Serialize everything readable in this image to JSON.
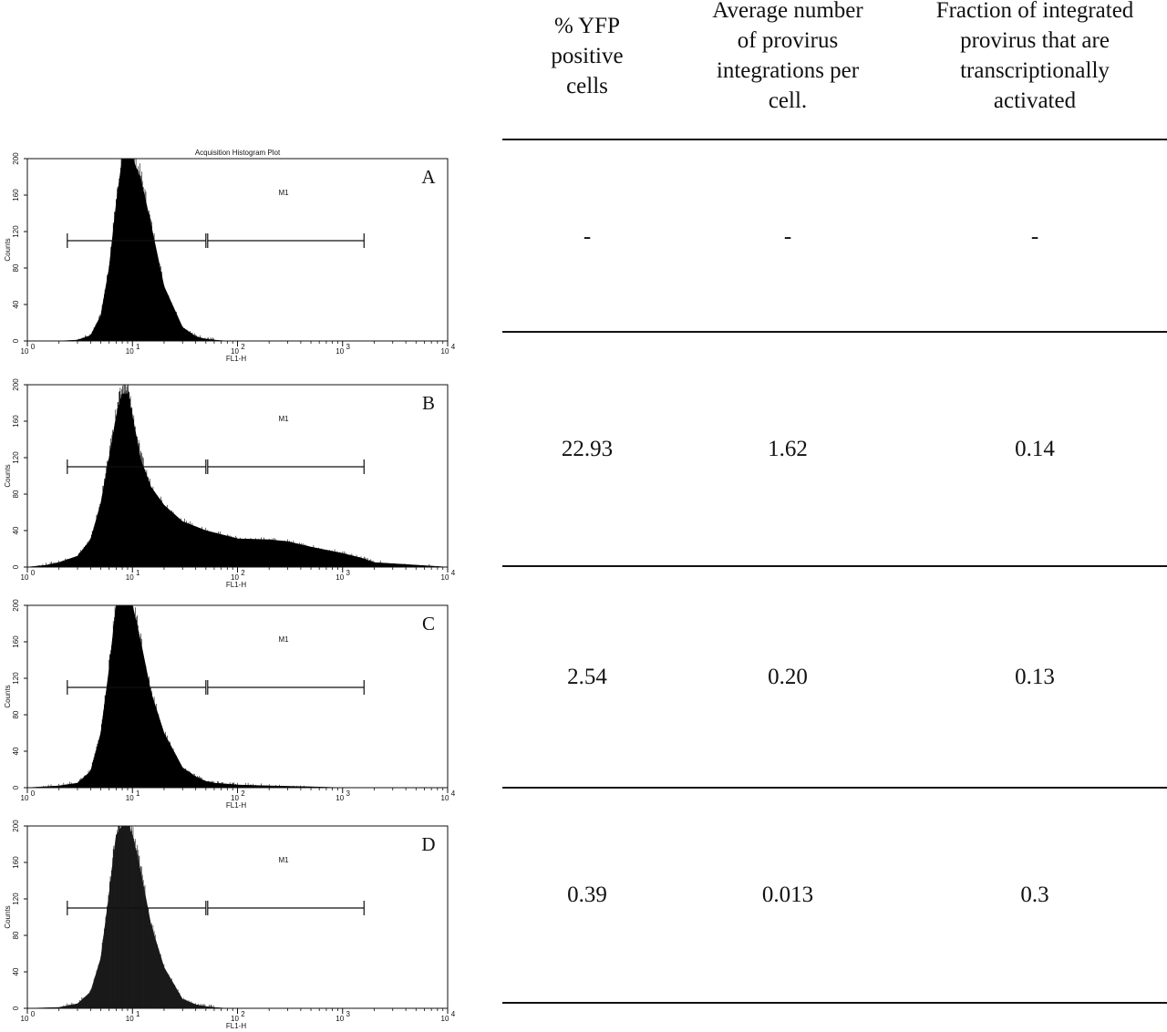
{
  "table": {
    "columns": [
      [
        "% YFP",
        "positive",
        "cells"
      ],
      [
        "Average number",
        "of provirus",
        "integrations per",
        "cell."
      ],
      [
        "Fraction of integrated",
        "provirus that are",
        "transcriptionally",
        "activated"
      ]
    ],
    "rows": [
      {
        "panel": "A",
        "yfp_positive": "-",
        "avg_integrations": "-",
        "fraction_activated": "-"
      },
      {
        "panel": "B",
        "yfp_positive": "22.93",
        "avg_integrations": "1.62",
        "fraction_activated": "0.14"
      },
      {
        "panel": "C",
        "yfp_positive": "2.54",
        "avg_integrations": "0.20",
        "fraction_activated": "0.13"
      },
      {
        "panel": "D",
        "yfp_positive": "0.39",
        "avg_integrations": "0.013",
        "fraction_activated": "0.3"
      }
    ]
  },
  "chart_data": [
    {
      "type": "area",
      "panel": "A",
      "title": "Acquisition Histogram Plot",
      "xlabel": "FL1-H",
      "ylabel": "Counts",
      "xscale": "log",
      "xlim": [
        1,
        10000
      ],
      "ylim": [
        0,
        200
      ],
      "x": [
        1,
        2,
        3,
        4,
        5,
        6,
        7,
        8,
        9,
        10,
        12,
        15,
        20,
        30,
        40,
        50,
        60,
        80,
        100,
        200,
        500,
        1000,
        10000
      ],
      "y": [
        0,
        0,
        1,
        6,
        28,
        80,
        150,
        200,
        200,
        200,
        178,
        128,
        60,
        15,
        5,
        2,
        1,
        0,
        0,
        0,
        0,
        0,
        0
      ],
      "marker": {
        "label": "M1",
        "range": [
          50,
          1600
        ]
      },
      "fill": "#000000"
    },
    {
      "type": "area",
      "panel": "B",
      "title": "",
      "xlabel": "FL1-H",
      "ylabel": "Counts",
      "xscale": "log",
      "xlim": [
        1,
        10000
      ],
      "ylim": [
        0,
        200
      ],
      "x": [
        1,
        1.5,
        2,
        3,
        4,
        5,
        6,
        7,
        8,
        9,
        10,
        12,
        15,
        20,
        30,
        50,
        80,
        100,
        200,
        300,
        500,
        1000,
        1500,
        2000,
        10000
      ],
      "y": [
        0,
        2,
        5,
        12,
        30,
        70,
        120,
        165,
        190,
        190,
        165,
        118,
        88,
        68,
        50,
        40,
        34,
        31,
        30,
        28,
        22,
        15,
        10,
        5,
        0
      ],
      "marker": {
        "label": "M1",
        "range": [
          50,
          1600
        ]
      },
      "fill": "#000000"
    },
    {
      "type": "area",
      "panel": "C",
      "title": "",
      "xlabel": "FL1-H",
      "ylabel": "Counts",
      "xscale": "log",
      "xlim": [
        1,
        10000
      ],
      "ylim": [
        0,
        200
      ],
      "x": [
        1,
        2,
        3,
        4,
        5,
        6,
        7,
        8,
        9,
        10,
        12,
        15,
        20,
        30,
        40,
        50,
        60,
        80,
        100,
        200,
        500,
        1000,
        10000
      ],
      "y": [
        0,
        2,
        5,
        18,
        60,
        130,
        200,
        200,
        200,
        200,
        160,
        105,
        60,
        22,
        12,
        7,
        5,
        4,
        3,
        2,
        1,
        0,
        0
      ],
      "marker": {
        "label": "M1",
        "range": [
          50,
          1600
        ]
      },
      "fill": "#000000"
    },
    {
      "type": "area",
      "panel": "D",
      "title": "",
      "xlabel": "FL1-H",
      "ylabel": "Counts",
      "xscale": "log",
      "xlim": [
        1,
        10000
      ],
      "ylim": [
        0,
        200
      ],
      "x": [
        1,
        2,
        3,
        4,
        5,
        6,
        7,
        8,
        9,
        10,
        12,
        15,
        20,
        30,
        40,
        50,
        60,
        80,
        100,
        200,
        500,
        10000
      ],
      "y": [
        0,
        1,
        5,
        18,
        55,
        125,
        190,
        200,
        200,
        190,
        150,
        92,
        45,
        10,
        4,
        2,
        1,
        0,
        0,
        0,
        0,
        0
      ],
      "marker": {
        "label": "M1",
        "range": [
          50,
          1600
        ]
      },
      "fill": "#1a1a1a"
    }
  ],
  "axis_text": {
    "y_ticks": [
      "0",
      "40",
      "80",
      "120",
      "160",
      "200"
    ],
    "x_tick_base": "10",
    "x_tick_exps": [
      "0",
      "1",
      "2",
      "3",
      "4"
    ]
  }
}
